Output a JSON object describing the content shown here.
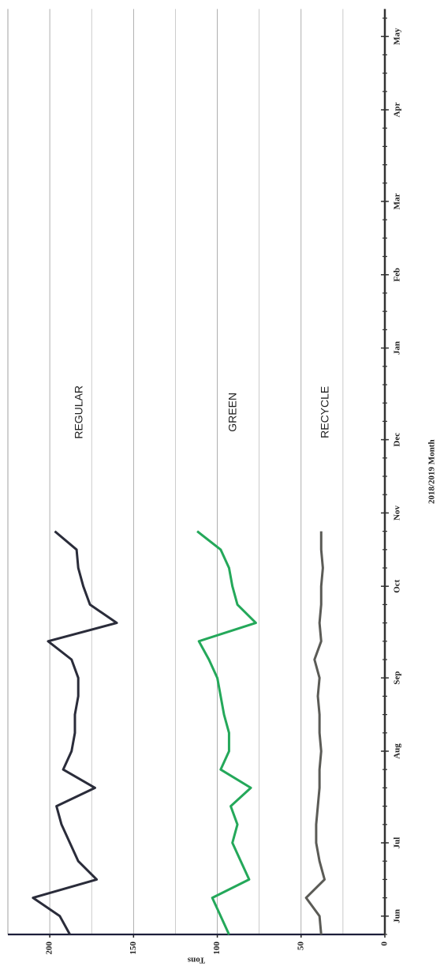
{
  "chart_data": {
    "type": "line",
    "xlabel": "2018/2019 Month",
    "ylabel": "Tons",
    "categories": [
      null,
      "Jun",
      null,
      null,
      null,
      "Jul",
      null,
      null,
      null,
      null,
      "Aug",
      null,
      null,
      null,
      "Sep",
      null,
      null,
      null,
      null,
      "Oct",
      null,
      null,
      null,
      "Nov",
      null,
      null,
      null,
      "Dec",
      null,
      null,
      null,
      null,
      "Jan",
      null,
      null,
      null,
      "Feb",
      null,
      null,
      null,
      "Mar",
      null,
      null,
      null,
      null,
      "Apr",
      null,
      null,
      null,
      "May",
      null
    ],
    "series": [
      {
        "name": "REGULAR",
        "color": "#2a2c3a",
        "values": [
          188,
          194,
          210,
          172,
          183,
          188,
          193,
          196,
          173,
          192,
          187,
          185,
          185,
          183,
          183,
          187,
          201,
          160,
          176,
          180,
          183,
          184,
          197,
          null,
          null,
          null,
          null,
          null,
          null,
          null,
          null,
          null,
          null,
          null,
          null,
          null,
          null,
          null,
          null,
          null,
          null,
          null,
          null,
          null,
          null,
          null,
          null,
          null,
          null,
          null,
          null
        ]
      },
      {
        "name": "GREEN",
        "color": "#24a85a",
        "values": [
          93,
          98,
          103,
          81,
          86,
          91,
          88,
          92,
          80,
          98,
          93,
          93,
          96,
          98,
          100,
          105,
          111,
          77,
          88,
          91,
          93,
          98,
          112,
          null,
          null,
          null,
          null,
          null,
          null,
          null,
          null,
          null,
          null,
          null,
          null,
          null,
          null,
          null,
          null,
          null,
          null,
          null,
          null,
          null,
          null,
          null,
          null,
          null,
          null,
          null,
          null
        ]
      },
      {
        "name": "RECYCLE",
        "color": "#5b5b56",
        "values": [
          38,
          39,
          47,
          36,
          39,
          41,
          41,
          40,
          39,
          39,
          38,
          39,
          39,
          40,
          39,
          42,
          38,
          39,
          38,
          38,
          37,
          38,
          38,
          null,
          null,
          null,
          null,
          null,
          null,
          null,
          null,
          null,
          null,
          null,
          null,
          null,
          null,
          null,
          null,
          null,
          null,
          null,
          null,
          null,
          null,
          null,
          null,
          null,
          null,
          null,
          null
        ]
      }
    ],
    "ylim": [
      0,
      225
    ],
    "yticks": [
      0,
      50,
      100,
      150,
      200
    ],
    "minor_grid": [
      25,
      75,
      125,
      175
    ],
    "grid": true,
    "rotated": true
  }
}
